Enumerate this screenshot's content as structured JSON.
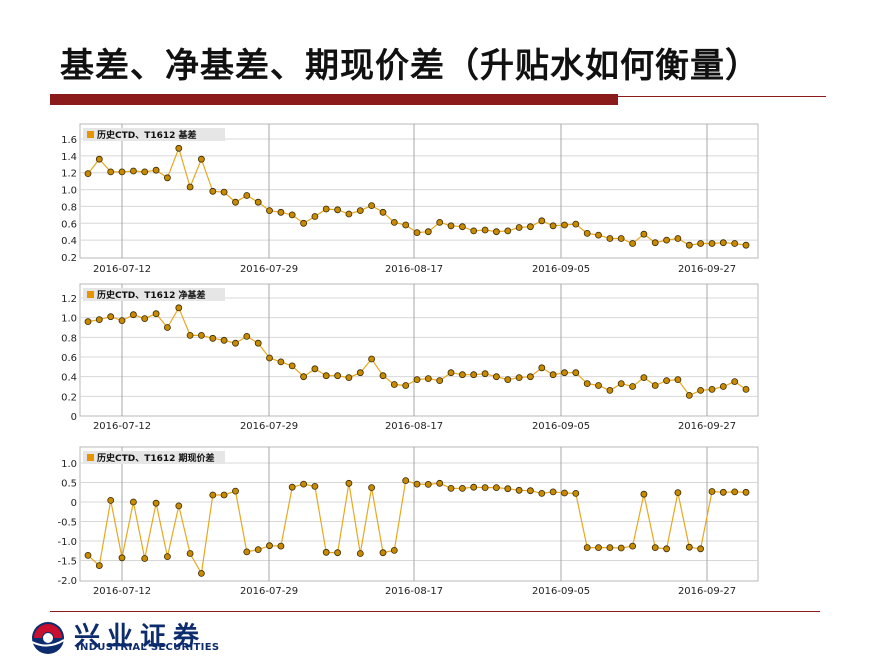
{
  "slide": {
    "title": "基差、净基差、期现价差（升贴水如何衡量）"
  },
  "footer": {
    "company_cn": "兴业证券",
    "company_en": "INDUSTRIAL SECURITIES"
  },
  "colors": {
    "accent": "#8b1a1a",
    "line": "#e8a820",
    "marker": "#c88a00",
    "marker_edge": "#3a2a00",
    "legend_marker": "#e89400",
    "brand": "#0d2c6e"
  },
  "chart_data": [
    {
      "type": "line",
      "legend": "历史CTD、T1612 基差",
      "legend_position": "top-left",
      "grid": true,
      "ylim": [
        0.2,
        1.6
      ],
      "yticks": [
        0.2,
        0.4,
        0.6,
        0.8,
        1.0,
        1.2,
        1.4,
        1.6
      ],
      "ytick_labels": [
        "0.2",
        "0.4",
        "0.6",
        "0.8",
        "1.0",
        "1.2",
        "1.4",
        "1.6"
      ],
      "xticks": [
        "2016-07-12",
        "2016-07-29",
        "2016-08-17",
        "2016-09-05",
        "2016-09-27"
      ],
      "values": [
        1.19,
        1.36,
        1.21,
        1.21,
        1.22,
        1.21,
        1.23,
        1.14,
        1.49,
        1.03,
        1.36,
        0.98,
        0.97,
        0.85,
        0.93,
        0.85,
        0.75,
        0.73,
        0.7,
        0.6,
        0.68,
        0.77,
        0.76,
        0.71,
        0.75,
        0.81,
        0.73,
        0.61,
        0.58,
        0.49,
        0.5,
        0.61,
        0.57,
        0.56,
        0.51,
        0.52,
        0.5,
        0.51,
        0.55,
        0.56,
        0.63,
        0.57,
        0.58,
        0.59,
        0.48,
        0.46,
        0.42,
        0.42,
        0.36,
        0.47,
        0.37,
        0.4,
        0.42,
        0.34,
        0.36,
        0.36,
        0.37,
        0.36,
        0.34
      ]
    },
    {
      "type": "line",
      "legend": "历史CTD、T1612 净基差",
      "legend_position": "top-left",
      "grid": true,
      "ylim": [
        0,
        1.2
      ],
      "yticks": [
        0,
        0.2,
        0.4,
        0.6,
        0.8,
        1.0,
        1.2
      ],
      "ytick_labels": [
        "0",
        "0.2",
        "0.4",
        "0.6",
        "0.8",
        "1.0",
        "1.2"
      ],
      "xticks": [
        "2016-07-12",
        "2016-07-29",
        "2016-08-17",
        "2016-09-05",
        "2016-09-27"
      ],
      "values": [
        0.96,
        0.98,
        1.01,
        0.97,
        1.03,
        0.99,
        1.04,
        0.9,
        1.1,
        0.82,
        0.82,
        0.79,
        0.77,
        0.74,
        0.81,
        0.74,
        0.59,
        0.55,
        0.51,
        0.4,
        0.48,
        0.41,
        0.41,
        0.39,
        0.44,
        0.58,
        0.41,
        0.32,
        0.31,
        0.37,
        0.38,
        0.36,
        0.44,
        0.42,
        0.42,
        0.43,
        0.4,
        0.37,
        0.39,
        0.4,
        0.49,
        0.42,
        0.44,
        0.44,
        0.33,
        0.31,
        0.26,
        0.33,
        0.3,
        0.39,
        0.31,
        0.36,
        0.37,
        0.21,
        0.26,
        0.27,
        0.3,
        0.35,
        0.27
      ]
    },
    {
      "type": "line",
      "legend": "历史CTD、T1612 期现价差",
      "legend_position": "top-left",
      "grid": true,
      "ylim": [
        -2.0,
        1.0
      ],
      "yticks": [
        -2.0,
        -1.5,
        -1.0,
        -0.5,
        0,
        0.5,
        1.0
      ],
      "ytick_labels": [
        "-2.0",
        "-1.5",
        "-1.0",
        "-0.5",
        "0",
        "0.5",
        "1.0"
      ],
      "xticks": [
        "2016-07-12",
        "2016-07-29",
        "2016-08-17",
        "2016-09-05",
        "2016-09-27"
      ],
      "values": [
        -1.37,
        -1.63,
        0.04,
        -1.43,
        0.0,
        -1.45,
        -0.03,
        -1.4,
        -0.1,
        -1.32,
        -1.83,
        0.18,
        0.18,
        0.28,
        -1.28,
        -1.22,
        -1.12,
        -1.13,
        0.38,
        0.46,
        0.4,
        -1.29,
        -1.3,
        0.48,
        -1.32,
        0.37,
        -1.3,
        -1.24,
        0.55,
        0.46,
        0.45,
        0.48,
        0.35,
        0.35,
        0.38,
        0.37,
        0.37,
        0.34,
        0.3,
        0.29,
        0.22,
        0.26,
        0.23,
        0.22,
        -1.17,
        -1.17,
        -1.17,
        -1.18,
        -1.13,
        0.2,
        -1.17,
        -1.2,
        0.24,
        -1.16,
        -1.2,
        0.27,
        0.25,
        0.26,
        0.25
      ]
    }
  ]
}
